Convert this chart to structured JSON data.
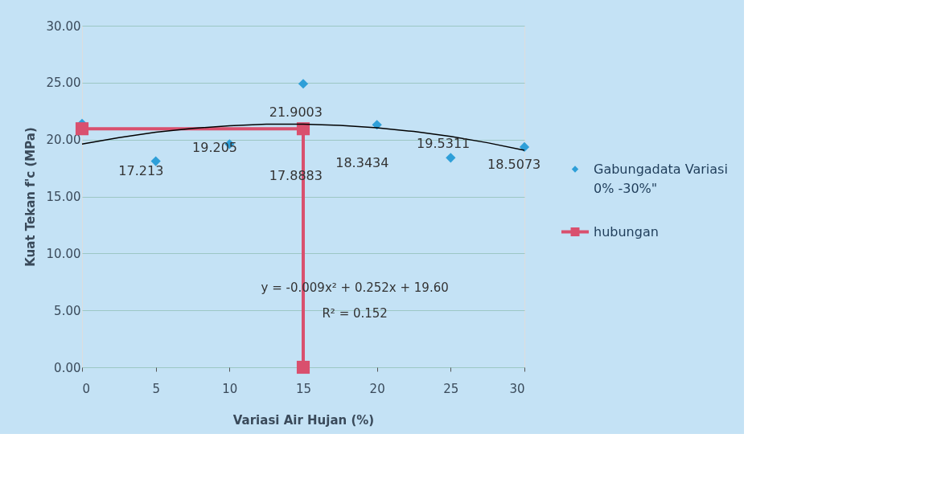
{
  "chart_data": {
    "type": "scatter",
    "xlabel": "Variasi Air Hujan (%)",
    "ylabel": "Kuat Tekan f'c (MPa)",
    "xlim": [
      0,
      30
    ],
    "xticks": [
      0,
      5,
      10,
      15,
      20,
      25,
      30
    ],
    "ylim": [
      0,
      30
    ],
    "yticks": [
      {
        "value": 0,
        "label": "0.00"
      },
      {
        "value": 5,
        "label": "5.00"
      },
      {
        "value": 10,
        "label": "10.00"
      },
      {
        "value": 15,
        "label": "15.00"
      },
      {
        "value": 20,
        "label": "20.00"
      },
      {
        "value": 25,
        "label": "25.00"
      },
      {
        "value": 30,
        "label": "30.00"
      }
    ],
    "grid": "y",
    "legend": "right",
    "series": [
      {
        "name": "Gabungadata Variasi 0% -30%\"",
        "marker": "diamond",
        "color": "#2e9fd8",
        "x": [
          0,
          5,
          10,
          15,
          20,
          25,
          30
        ],
        "values": [
          21.4,
          18.1,
          19.6,
          24.9,
          21.3,
          18.4,
          19.35
        ]
      },
      {
        "name": "hubungan",
        "type": "line",
        "marker": "square",
        "color": "#d9506e",
        "x": [
          0,
          15,
          15
        ],
        "values": [
          20.95,
          20.95,
          0
        ]
      },
      {
        "type": "line",
        "marker": "none",
        "color": "#000000",
        "x": [
          0,
          2.5,
          5,
          7.5,
          10,
          12.5,
          15,
          17.5,
          20,
          22.5,
          25,
          27.5,
          30
        ],
        "values": [
          19.6,
          20.17,
          20.64,
          20.98,
          21.22,
          21.35,
          21.36,
          21.25,
          21.04,
          20.71,
          20.28,
          19.72,
          19.06
        ]
      }
    ],
    "annotations": [
      "17.213",
      "19.205",
      "21.9003",
      "17.8883",
      "18.3434",
      "19.5311",
      "18.5073",
      "y = -0.009x² + 0.252x + 19.60",
      "R² = 0.152"
    ]
  }
}
